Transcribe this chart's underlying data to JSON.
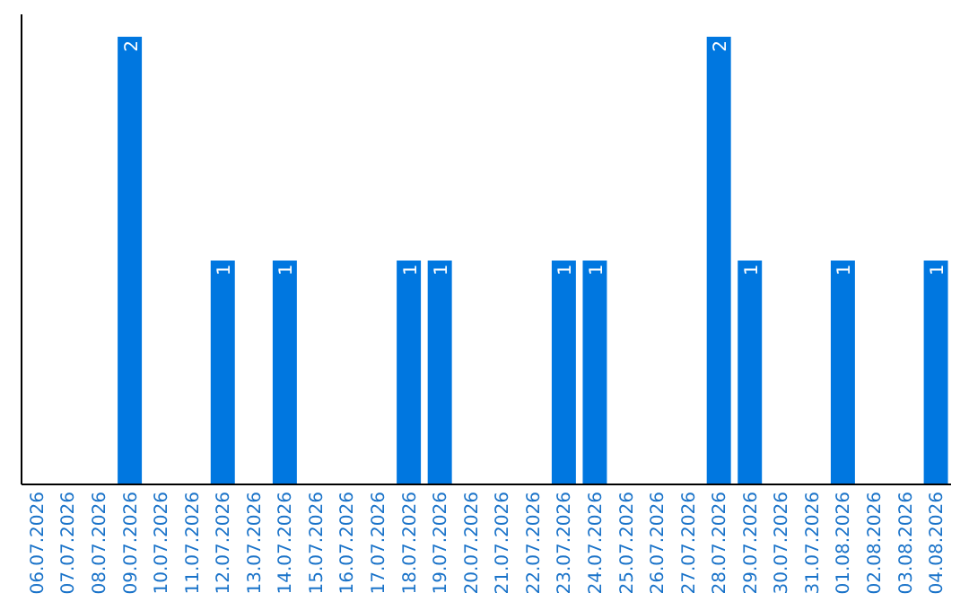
{
  "chart_data": {
    "type": "bar",
    "categories": [
      "06.07.2026",
      "07.07.2026",
      "08.07.2026",
      "09.07.2026",
      "10.07.2026",
      "11.07.2026",
      "12.07.2026",
      "13.07.2026",
      "14.07.2026",
      "15.07.2026",
      "16.07.2026",
      "17.07.2026",
      "18.07.2026",
      "19.07.2026",
      "20.07.2026",
      "21.07.2026",
      "22.07.2026",
      "23.07.2026",
      "24.07.2026",
      "25.07.2026",
      "26.07.2026",
      "27.07.2026",
      "28.07.2026",
      "29.07.2026",
      "30.07.2026",
      "31.07.2026",
      "01.08.2026",
      "02.08.2026",
      "03.08.2026",
      "04.08.2026"
    ],
    "values": [
      0,
      0,
      0,
      2,
      0,
      0,
      1,
      0,
      1,
      0,
      0,
      0,
      1,
      1,
      0,
      0,
      0,
      1,
      1,
      0,
      0,
      0,
      2,
      1,
      0,
      0,
      1,
      0,
      0,
      1
    ],
    "value_labels": [
      null,
      null,
      null,
      "2",
      null,
      null,
      "1",
      null,
      "1",
      null,
      null,
      null,
      "1",
      "1",
      null,
      null,
      null,
      "1",
      "1",
      null,
      null,
      null,
      "2",
      "1",
      null,
      null,
      "1",
      null,
      null,
      "1"
    ],
    "color": "#0077e0",
    "tick_labels": "x"
  }
}
